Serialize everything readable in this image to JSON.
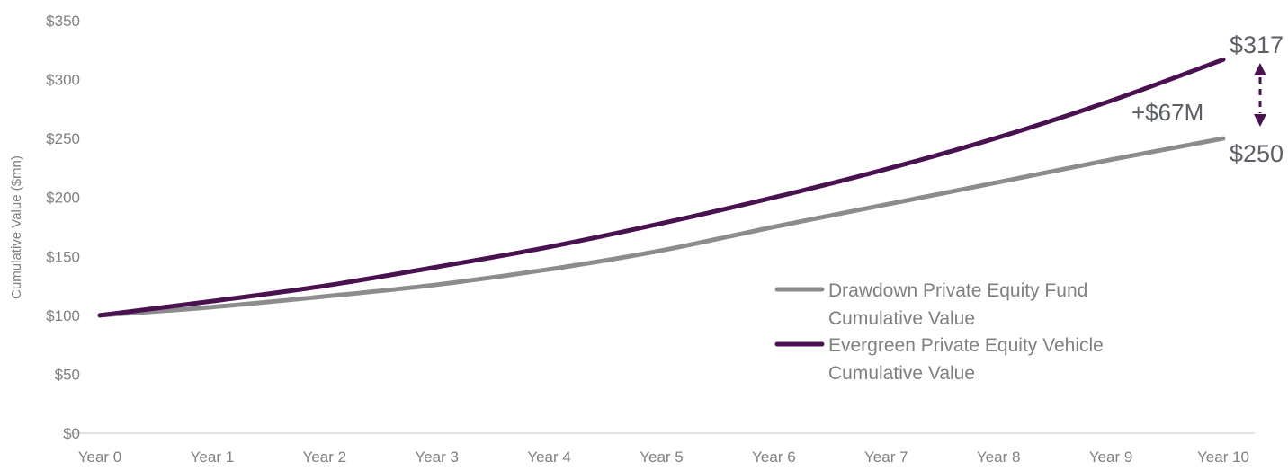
{
  "chart_data": {
    "type": "line",
    "categories": [
      "Year 0",
      "Year 1",
      "Year 2",
      "Year 3",
      "Year 4",
      "Year 5",
      "Year 6",
      "Year 7",
      "Year 8",
      "Year 9",
      "Year 10"
    ],
    "y_ticks": [
      "$0",
      "$50",
      "$100",
      "$150",
      "$200",
      "$250",
      "$300",
      "$350"
    ],
    "ylim": [
      0,
      350
    ],
    "ylabel": "Cumulative Value ($mn)",
    "xlabel": "",
    "title": "",
    "grid": false,
    "legend_position": "center-right",
    "series": [
      {
        "name": "Drawdown Private Equity Fund Cumulative Value",
        "legend_lines": [
          "Drawdown Private Equity Fund",
          "Cumulative Value"
        ],
        "color": "#8c8c8c",
        "values": [
          100,
          107,
          116,
          126,
          139,
          155,
          175,
          194,
          213,
          232,
          250
        ]
      },
      {
        "name": "Evergreen Private Equity Vehicle Cumulative Value",
        "legend_lines": [
          "Evergreen Private Equity Vehicle",
          "Cumulative Value"
        ],
        "color": "#4a1150",
        "values": [
          100,
          112,
          125,
          141,
          158,
          178,
          200,
          224,
          251,
          282,
          317
        ]
      }
    ],
    "annotations": {
      "evergreen_end": "$317",
      "drawdown_end": "$250",
      "difference": "+$67M",
      "arrow_color": "#4a1150"
    }
  }
}
